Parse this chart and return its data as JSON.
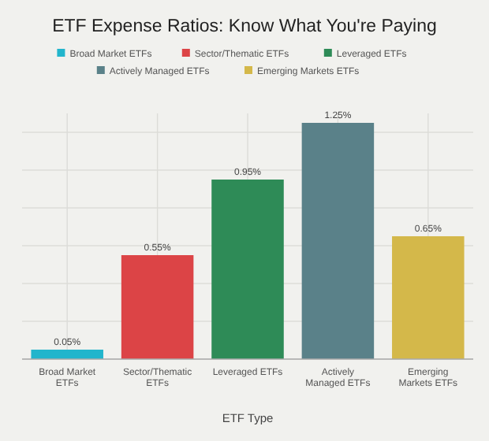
{
  "chart_data": {
    "type": "bar",
    "title": "ETF Expense Ratios: Know What You're Paying",
    "xlabel": "ETF Type",
    "categories": [
      "Broad Market ETFs",
      "Sector/Thematic ETFs",
      "Leveraged ETFs",
      "Actively Managed ETFs",
      "Emerging Markets ETFs"
    ],
    "series": [
      {
        "name": "Broad Market ETFs",
        "color": "#22b5cc",
        "values": [
          0.05,
          null,
          null,
          null,
          null
        ],
        "value_labels": [
          "0.05%",
          null,
          null,
          null,
          null
        ]
      },
      {
        "name": "Sector/Thematic ETFs",
        "color": "#dc4446",
        "values": [
          null,
          0.55,
          null,
          null,
          null
        ],
        "value_labels": [
          null,
          "0.55%",
          null,
          null,
          null
        ]
      },
      {
        "name": "Leveraged ETFs",
        "color": "#2e8b57",
        "values": [
          null,
          null,
          0.95,
          null,
          null
        ],
        "value_labels": [
          null,
          null,
          "0.95%",
          null,
          null
        ]
      },
      {
        "name": "Actively Managed ETFs",
        "color": "#5a8189",
        "values": [
          null,
          null,
          null,
          1.25,
          null
        ],
        "value_labels": [
          null,
          null,
          null,
          "1.25%",
          null
        ]
      },
      {
        "name": "Emerging Markets ETFs",
        "color": "#d4b84a",
        "values": [
          null,
          null,
          null,
          null,
          0.65
        ],
        "value_labels": [
          null,
          null,
          null,
          null,
          "0.65%"
        ]
      }
    ],
    "ylim": [
      0,
      1.3
    ],
    "yticks": [
      {
        "value": 0,
        "label": null
      },
      {
        "value": 0.2,
        "label": null
      },
      {
        "value": 0.4,
        "label": null
      },
      {
        "value": 0.6,
        "label": null
      },
      {
        "value": 0.8,
        "label": null
      },
      {
        "value": 1,
        "label": null
      },
      {
        "value": 1.2,
        "label": null
      }
    ],
    "tick_labels": "x",
    "grid": true,
    "legend": "top"
  }
}
